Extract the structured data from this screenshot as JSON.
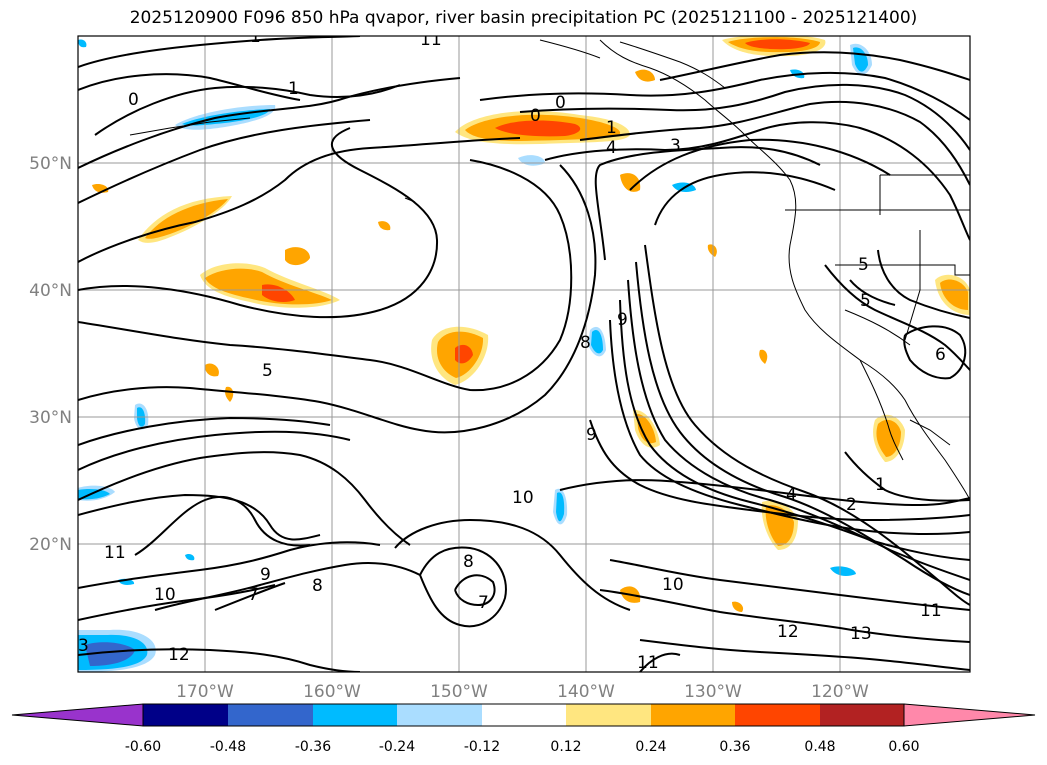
{
  "title": "2025120900 F096 850 hPa qvapor, river basin precipitation PC (2025121100 - 2025121400)",
  "lat_labels": [
    "50°N",
    "40°N",
    "30°N",
    "20°N"
  ],
  "lon_labels": [
    "170°W",
    "160°W",
    "150°W",
    "140°W",
    "130°W",
    "120°W"
  ],
  "contour_labels": [
    "0",
    "0",
    "0",
    "1",
    "1",
    "1",
    "3",
    "4",
    "5",
    "5",
    "5",
    "8",
    "9",
    "9",
    "10",
    "10",
    "10",
    "11",
    "11",
    "11",
    "12",
    "12",
    "13",
    "11",
    "8",
    "8",
    "7",
    "7",
    "9",
    "4",
    "2",
    "1",
    "3",
    "6"
  ],
  "colorbar": {
    "tick_labels": [
      "-0.60",
      "-0.48",
      "-0.36",
      "-0.24",
      "-0.12",
      "0.12",
      "0.24",
      "0.36",
      "0.48",
      "0.60"
    ],
    "colors": [
      "#9933cc",
      "#000088",
      "#3366cc",
      "#00bbff",
      "#aaddff",
      "#ffffff",
      "#ffe680",
      "#ffa500",
      "#ff4500",
      "#b22222",
      "#ff88aa"
    ]
  },
  "colors": {
    "contour": "#000000",
    "grid": "#999999",
    "coast": "#000000"
  }
}
